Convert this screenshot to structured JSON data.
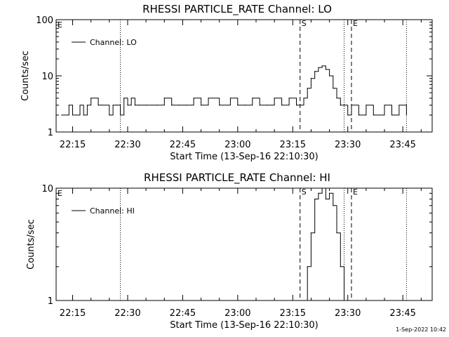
{
  "chart_data": [
    {
      "type": "line",
      "title": "RHESSI PARTICLE_RATE Channel: LO",
      "xlabel": "Start Time (13-Sep-16 22:10:30)",
      "ylabel": "Counts/sec",
      "yscale": "log",
      "ylim": [
        1,
        100
      ],
      "xlim": [
        "22:10:30",
        "23:53:00"
      ],
      "ytick_labels": [
        "1",
        "10",
        "100"
      ],
      "xtick_labels": [
        "22:15",
        "22:30",
        "22:45",
        "23:00",
        "23:15",
        "23:30",
        "23:45"
      ],
      "legend": "top-left",
      "series": [
        {
          "name": "Channel: LO",
          "x": [
            "22:12",
            "22:14",
            "22:15",
            "22:17",
            "22:18",
            "22:19",
            "22:20",
            "22:22",
            "22:23",
            "22:25",
            "22:26",
            "22:27",
            "22:28",
            "22:29",
            "22:30",
            "22:31",
            "22:32",
            "22:33",
            "22:35",
            "22:38",
            "22:40",
            "22:42",
            "22:44",
            "22:46",
            "22:48",
            "22:50",
            "22:52",
            "22:55",
            "22:58",
            "23:00",
            "23:02",
            "23:04",
            "23:06",
            "23:08",
            "23:10",
            "23:12",
            "23:14",
            "23:16",
            "23:17",
            "23:18",
            "23:19",
            "23:20",
            "23:21",
            "23:22",
            "23:23",
            "23:24",
            "23:25",
            "23:26",
            "23:27",
            "23:28",
            "23:29",
            "23:30",
            "23:31",
            "23:33",
            "23:35",
            "23:37",
            "23:40",
            "23:42",
            "23:44",
            "23:46"
          ],
          "y": [
            2,
            3,
            2,
            3,
            2,
            3,
            4,
            3,
            3,
            2,
            3,
            3,
            2,
            4,
            3,
            4,
            3,
            3,
            3,
            3,
            4,
            3,
            3,
            3,
            4,
            3,
            4,
            3,
            4,
            3,
            3,
            4,
            3,
            3,
            4,
            3,
            4,
            3,
            3,
            4,
            6,
            9,
            12,
            14,
            15,
            13,
            10,
            6,
            4,
            3,
            3,
            2,
            3,
            2,
            3,
            2,
            3,
            2,
            3,
            2
          ]
        }
      ],
      "markers": [
        {
          "label": "S",
          "x": "23:17",
          "style": "dashed"
        },
        {
          "label": "E",
          "x": "23:31",
          "style": "dashed"
        }
      ],
      "dotted_lines": [
        "22:28",
        "23:29",
        "23:46"
      ],
      "corner_label": "E"
    },
    {
      "type": "line",
      "title": "RHESSI PARTICLE_RATE Channel: HI",
      "xlabel": "Start Time (13-Sep-16 22:10:30)",
      "ylabel": "Counts/sec",
      "yscale": "log",
      "ylim": [
        1,
        10
      ],
      "xlim": [
        "22:10:30",
        "23:53:00"
      ],
      "ytick_labels": [
        "1",
        "10"
      ],
      "xtick_labels": [
        "22:15",
        "22:30",
        "22:45",
        "23:00",
        "23:15",
        "23:30",
        "23:45"
      ],
      "legend": "top-left",
      "series": [
        {
          "name": "Channel: HI",
          "x": [
            "23:18",
            "23:19",
            "23:20",
            "23:21",
            "23:22",
            "23:23",
            "23:24",
            "23:25",
            "23:26",
            "23:27",
            "23:28",
            "23:29"
          ],
          "y": [
            1,
            2,
            4,
            8,
            9,
            10,
            8,
            9,
            7,
            4,
            2,
            1
          ]
        }
      ],
      "markers": [
        {
          "label": "S",
          "x": "23:17",
          "style": "dashed"
        },
        {
          "label": "E",
          "x": "23:31",
          "style": "dashed"
        }
      ],
      "dotted_lines": [
        "22:28",
        "23:29",
        "23:46"
      ],
      "corner_label": "E"
    }
  ],
  "footer": {
    "timestamp": "1-Sep-2022 10:42"
  }
}
